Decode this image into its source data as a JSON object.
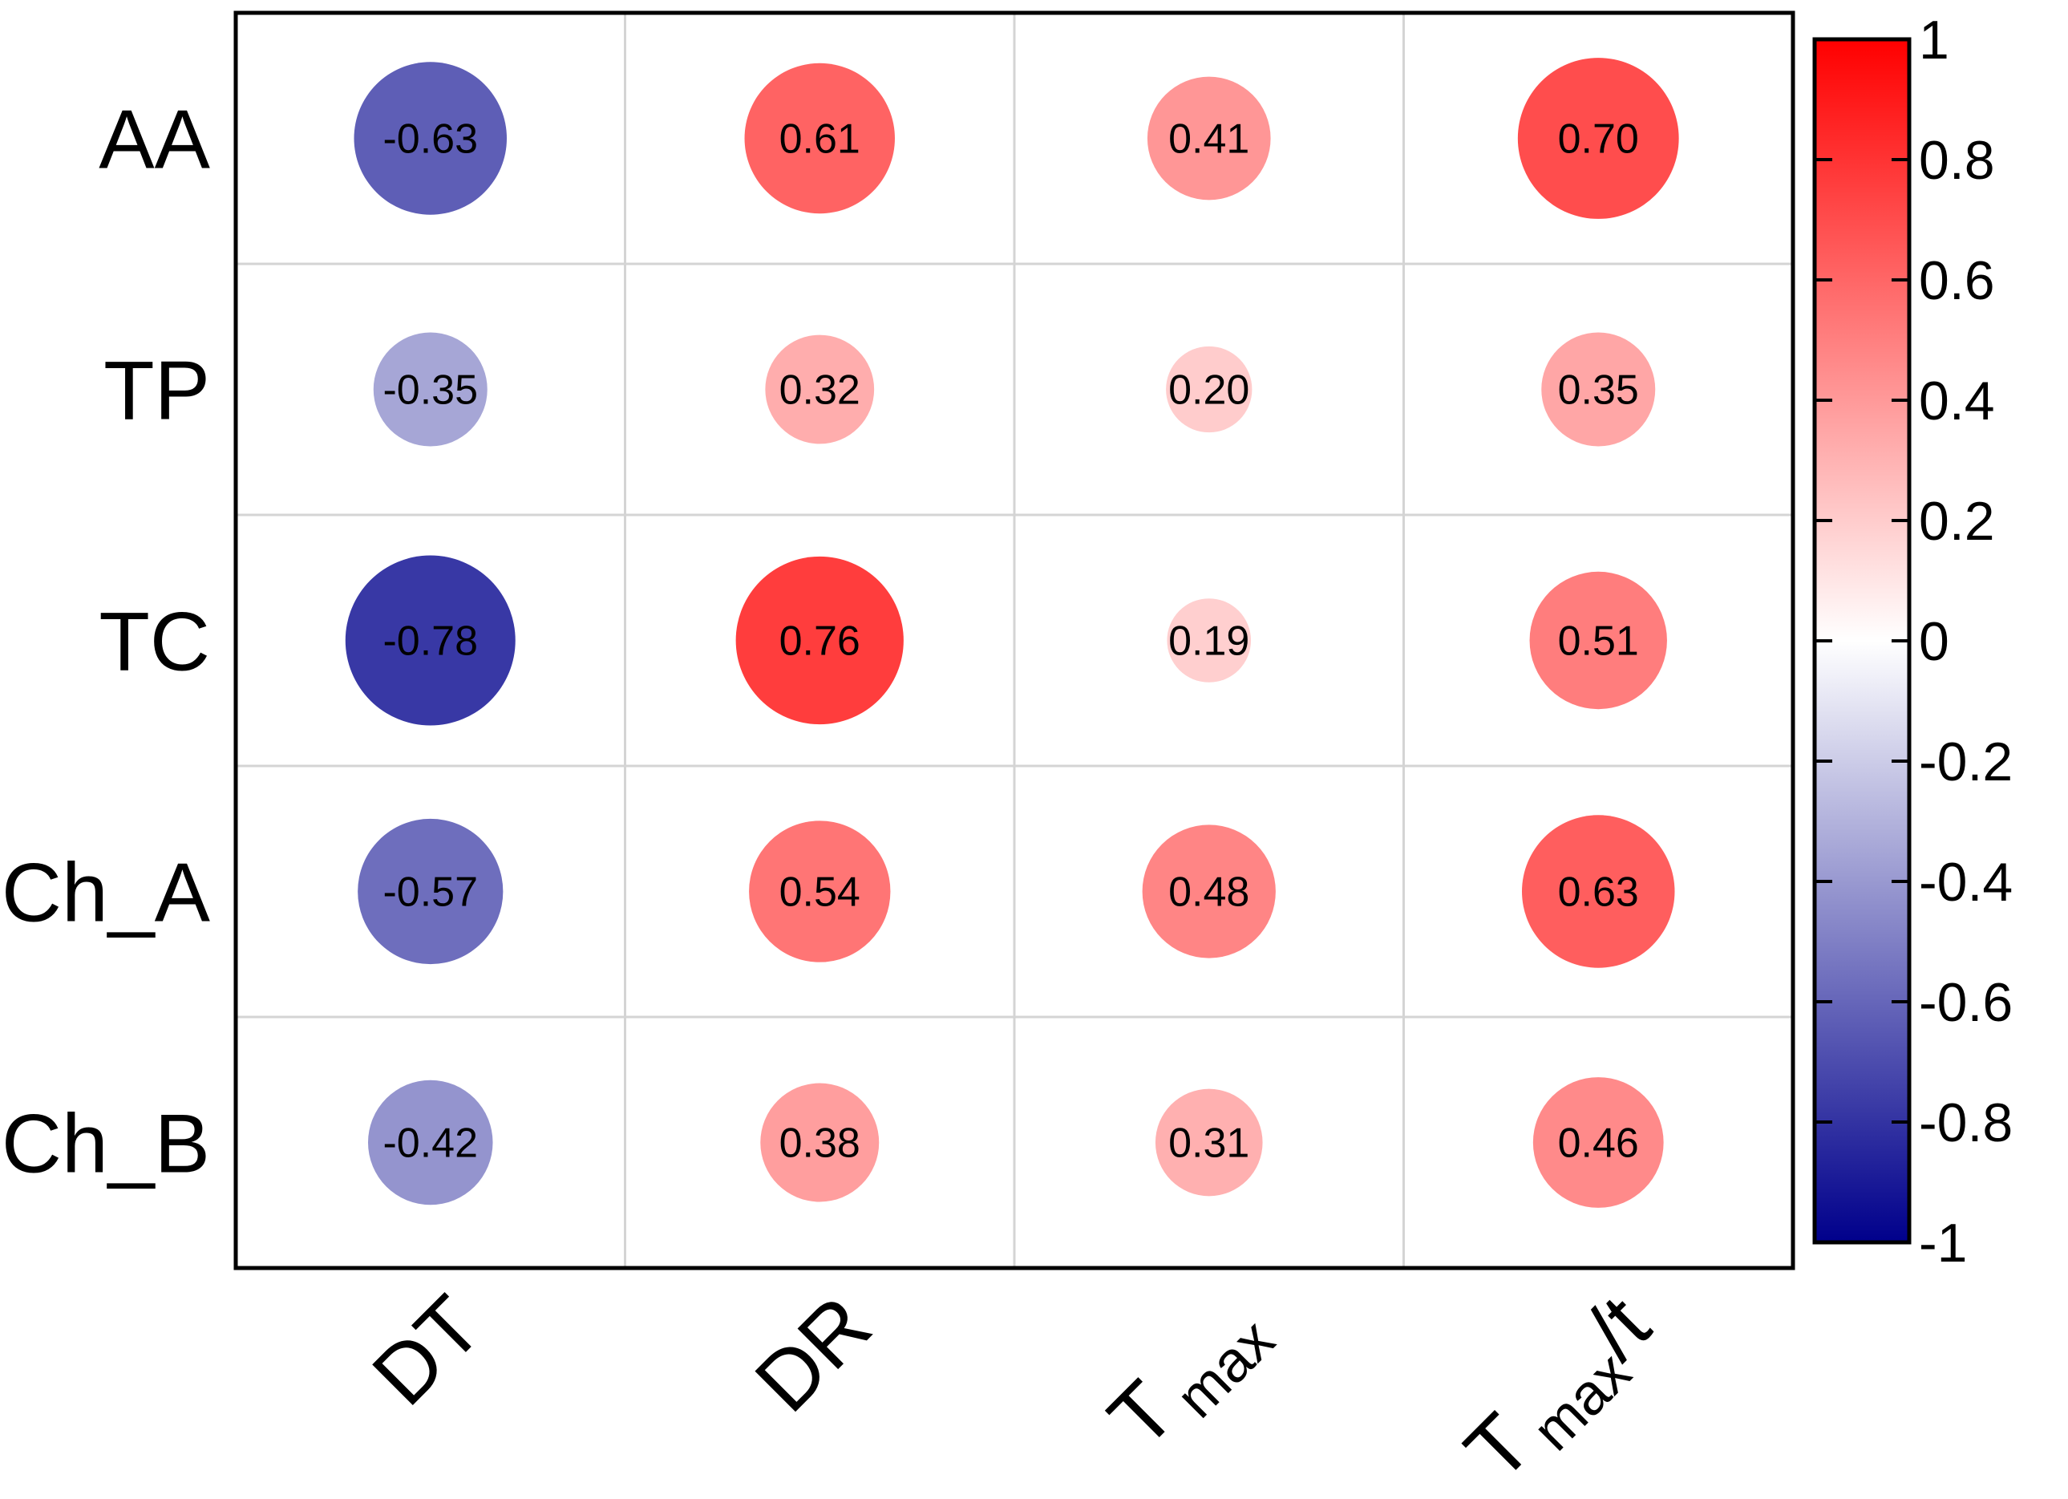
{
  "chart_data": {
    "type": "correlation-bubble-heatmap",
    "rows": [
      "AA",
      "TP",
      "TC",
      "Ch_A",
      "Ch_B"
    ],
    "columns": [
      {
        "main": "DT",
        "sub": "",
        "suffix": ""
      },
      {
        "main": "DR",
        "sub": "",
        "suffix": ""
      },
      {
        "main": "T",
        "sub": "max",
        "suffix": ""
      },
      {
        "main": "T",
        "sub": "max",
        "suffix": "/t"
      }
    ],
    "values": [
      [
        -0.63,
        0.61,
        0.41,
        0.7
      ],
      [
        -0.35,
        0.32,
        0.2,
        0.35
      ],
      [
        -0.78,
        0.76,
        0.19,
        0.51
      ],
      [
        -0.57,
        0.54,
        0.48,
        0.63
      ],
      [
        -0.42,
        0.38,
        0.31,
        0.46
      ]
    ],
    "value_labels": [
      [
        "-0.63",
        "0.61",
        "0.41",
        "0.70"
      ],
      [
        "-0.35",
        "0.32",
        "0.20",
        "0.35"
      ],
      [
        "-0.78",
        "0.76",
        "0.19",
        "0.51"
      ],
      [
        "-0.57",
        "0.54",
        "0.48",
        "0.63"
      ],
      [
        "-0.42",
        "0.38",
        "0.31",
        "0.46"
      ]
    ],
    "colorbar": {
      "range": [
        -1,
        1
      ],
      "ticks": [
        1,
        0.8,
        0.6,
        0.4,
        0.2,
        0,
        -0.2,
        -0.4,
        -0.6,
        -0.8,
        -1
      ],
      "tick_labels": [
        "1",
        "0.8",
        "0.6",
        "0.4",
        "0.2",
        "0",
        "-0.2",
        "-0.4",
        "-0.6",
        "-0.8",
        "-1"
      ],
      "colors": {
        "negative": "#00008b",
        "zero": "#ffffff",
        "positive": "#ff0000"
      }
    },
    "grid": true
  }
}
